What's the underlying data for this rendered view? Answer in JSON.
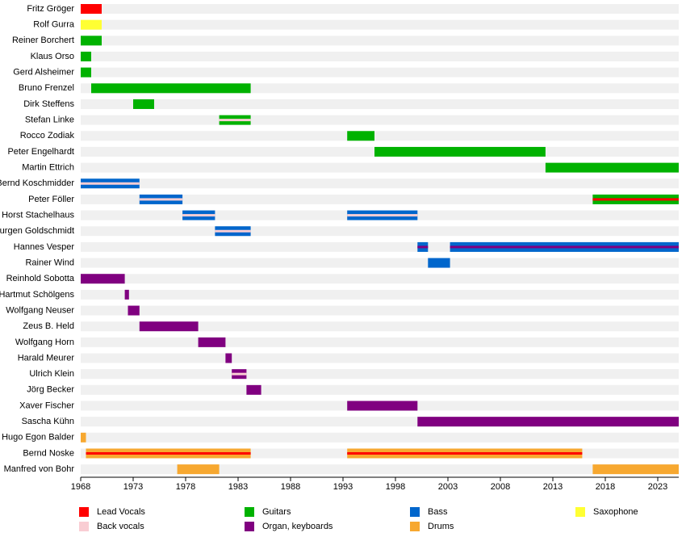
{
  "chart_data": {
    "type": "timeline",
    "xlim": [
      1968,
      2025
    ],
    "xticks": [
      1968,
      1973,
      1978,
      1983,
      1988,
      1993,
      1998,
      2003,
      2008,
      2013,
      2018,
      2023
    ],
    "roles": [
      {
        "name": "Lead Vocals",
        "color": "#ff0000"
      },
      {
        "name": "Back vocals",
        "color": "#f9cdd3"
      },
      {
        "name": "Guitars",
        "color": "#00b200"
      },
      {
        "name": "Organ, keyboards",
        "color": "#800080"
      },
      {
        "name": "Bass",
        "color": "#0066cc"
      },
      {
        "name": "Drums",
        "color": "#f7a830"
      },
      {
        "name": "Saxophone",
        "color": "#ffff33"
      }
    ],
    "members": [
      {
        "name": "Fritz Gröger",
        "bars": [
          {
            "start": 1968,
            "end": 1970,
            "role": 0
          }
        ]
      },
      {
        "name": "Rolf Gurra",
        "bars": [
          {
            "start": 1968,
            "end": 1970,
            "role": 6
          }
        ]
      },
      {
        "name": "Reiner Borchert",
        "bars": [
          {
            "start": 1968,
            "end": 1970,
            "role": 2
          }
        ]
      },
      {
        "name": "Klaus Orso",
        "bars": [
          {
            "start": 1968,
            "end": 1969,
            "role": 2
          }
        ]
      },
      {
        "name": "Gerd Alsheimer",
        "bars": [
          {
            "start": 1968,
            "end": 1969,
            "role": 2
          }
        ]
      },
      {
        "name": "Bruno Frenzel",
        "bars": [
          {
            "start": 1969,
            "end": 1984.2,
            "role": 2
          }
        ]
      },
      {
        "name": "Dirk Steffens",
        "bars": [
          {
            "start": 1973,
            "end": 1975,
            "role": 2
          }
        ]
      },
      {
        "name": "Stefan Linke",
        "bars": [
          {
            "start": 1981.2,
            "end": 1984.2,
            "role": 2,
            "stripe": 1
          }
        ]
      },
      {
        "name": "Rocco Zodiak",
        "bars": [
          {
            "start": 1993.4,
            "end": 1996,
            "role": 2
          }
        ]
      },
      {
        "name": "Peter Engelhardt",
        "bars": [
          {
            "start": 1996,
            "end": 2012.3,
            "role": 2
          }
        ]
      },
      {
        "name": "Martin Ettrich",
        "bars": [
          {
            "start": 2012.3,
            "end": 2025,
            "role": 2
          }
        ]
      },
      {
        "name": "Bernd Koschmidder",
        "bars": [
          {
            "start": 1968,
            "end": 1973.6,
            "role": 4,
            "stripe": 1
          }
        ]
      },
      {
        "name": "Peter Föller",
        "bars": [
          {
            "start": 1973.6,
            "end": 1977.7,
            "role": 4,
            "stripe": 1
          },
          {
            "start": 2016.8,
            "end": 2025,
            "role": 2,
            "stripe": 0
          }
        ]
      },
      {
        "name": "Horst Stachelhaus",
        "bars": [
          {
            "start": 1977.7,
            "end": 1980.8,
            "role": 4,
            "stripe": 1
          },
          {
            "start": 1993.4,
            "end": 2000.1,
            "role": 4,
            "stripe": 1
          }
        ]
      },
      {
        "name": "Jurgen Goldschmidt",
        "bars": [
          {
            "start": 1980.8,
            "end": 1984.2,
            "role": 4,
            "stripe": 1
          }
        ]
      },
      {
        "name": "Hannes Vesper",
        "bars": [
          {
            "start": 2000.1,
            "end": 2001.1,
            "role": 4,
            "stripe": 3
          },
          {
            "start": 2003.2,
            "end": 2025,
            "role": 4,
            "stripe": 3
          }
        ]
      },
      {
        "name": "Rainer Wind",
        "bars": [
          {
            "start": 2001.1,
            "end": 2003.2,
            "role": 4
          }
        ]
      },
      {
        "name": "Reinhold Sobotta",
        "bars": [
          {
            "start": 1968,
            "end": 1972.2,
            "role": 3
          }
        ]
      },
      {
        "name": "Hartmut Schölgens",
        "bars": [
          {
            "start": 1972.2,
            "end": 1972.6,
            "role": 3
          }
        ]
      },
      {
        "name": "Wolfgang Neuser",
        "bars": [
          {
            "start": 1972.5,
            "end": 1973.6,
            "role": 3
          }
        ]
      },
      {
        "name": "Zeus B. Held",
        "bars": [
          {
            "start": 1973.6,
            "end": 1979.2,
            "role": 3
          }
        ]
      },
      {
        "name": "Wolfgang Horn",
        "bars": [
          {
            "start": 1979.2,
            "end": 1981.8,
            "role": 3
          }
        ]
      },
      {
        "name": "Harald Meurer",
        "bars": [
          {
            "start": 1981.8,
            "end": 1982.4,
            "role": 3
          }
        ]
      },
      {
        "name": "Ulrich Klein",
        "bars": [
          {
            "start": 1982.4,
            "end": 1983.8,
            "role": 3,
            "stripe": 1
          }
        ]
      },
      {
        "name": "Jörg Becker",
        "bars": [
          {
            "start": 1983.8,
            "end": 1985.2,
            "role": 3
          }
        ]
      },
      {
        "name": "Xaver Fischer",
        "bars": [
          {
            "start": 1993.4,
            "end": 2000.1,
            "role": 3
          }
        ]
      },
      {
        "name": "Sascha Kühn",
        "bars": [
          {
            "start": 2000.1,
            "end": 2025,
            "role": 3
          }
        ]
      },
      {
        "name": "Hugo Egon Balder",
        "bars": [
          {
            "start": 1968,
            "end": 1968.5,
            "role": 5
          }
        ]
      },
      {
        "name": "Bernd Noske",
        "bars": [
          {
            "start": 1968.5,
            "end": 1984.2,
            "role": 5,
            "stripe": 0
          },
          {
            "start": 1993.4,
            "end": 2015.8,
            "role": 5,
            "stripe": 0
          }
        ]
      },
      {
        "name": "Manfred von Bohr",
        "bars": [
          {
            "start": 1977.2,
            "end": 1981.2,
            "role": 5
          },
          {
            "start": 2016.8,
            "end": 2025,
            "role": 5
          }
        ]
      }
    ]
  }
}
